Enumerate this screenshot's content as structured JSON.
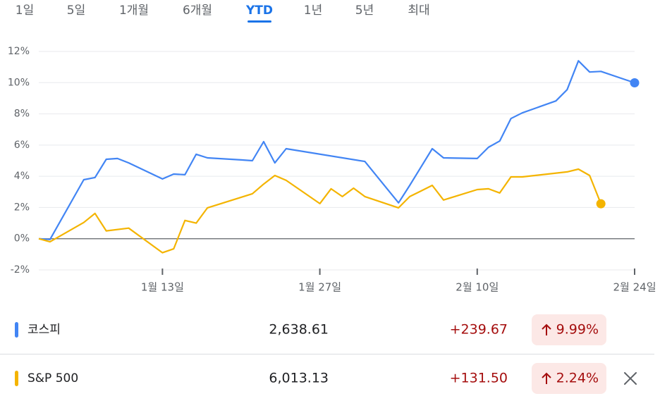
{
  "tabs": [
    "1일",
    "5일",
    "1개월",
    "6개월",
    "YTD",
    "1년",
    "5년",
    "최대"
  ],
  "active_tab": 4,
  "chart_data": {
    "type": "line",
    "grid": true,
    "ylim": [
      -2,
      12
    ],
    "yticks": [
      {
        "value": -2,
        "label": "-2%"
      },
      {
        "value": 0,
        "label": "0%"
      },
      {
        "value": 2,
        "label": "2%"
      },
      {
        "value": 4,
        "label": "4%"
      },
      {
        "value": 6,
        "label": "6%"
      },
      {
        "value": 8,
        "label": "8%"
      },
      {
        "value": 10,
        "label": "10%"
      },
      {
        "value": 12,
        "label": "12%"
      }
    ],
    "xlim": [
      "1월 2일",
      "2월 24일"
    ],
    "xticks": [
      "1월 13일",
      "1월 27일",
      "2월 10일",
      "2월 24일"
    ],
    "series": [
      {
        "name": "코스피",
        "color": "#4285f4",
        "x": [
          "1월 2일",
          "1월 3일",
          "1월 6일",
          "1월 7일",
          "1월 8일",
          "1월 9일",
          "1월 10일",
          "1월 13일",
          "1월 14일",
          "1월 15일",
          "1월 16일",
          "1월 17일",
          "1월 20일",
          "1월 21일",
          "1월 22일",
          "1월 23일",
          "1월 24일",
          "1월 31일",
          "2월 3일",
          "2월 4일",
          "2월 5일",
          "2월 6일",
          "2월 7일",
          "2월 10일",
          "2월 11일",
          "2월 12일",
          "2월 13일",
          "2월 14일",
          "2월 17일",
          "2월 18일",
          "2월 19일",
          "2월 20일",
          "2월 21일",
          "2월 24일"
        ],
        "values": [
          0,
          -0.05,
          3.78,
          3.92,
          5.09,
          5.14,
          4.86,
          3.83,
          4.14,
          4.1,
          5.41,
          5.18,
          5.05,
          5.0,
          6.22,
          4.86,
          5.77,
          4.95,
          2.3,
          3.42,
          4.6,
          5.77,
          5.18,
          5.14,
          5.86,
          6.26,
          7.7,
          8.06,
          8.83,
          9.55,
          11.4,
          10.68,
          10.72,
          9.99
        ]
      },
      {
        "name": "S&P 500",
        "color": "#f4b400",
        "x": [
          "1월 2일",
          "1월 3일",
          "1월 6일",
          "1월 7일",
          "1월 8일",
          "1월 10일",
          "1월 13일",
          "1월 14일",
          "1월 15일",
          "1월 16일",
          "1월 17일",
          "1월 21일",
          "1월 22일",
          "1월 23일",
          "1월 24일",
          "1월 27일",
          "1월 28일",
          "1월 29일",
          "1월 30일",
          "1월 31일",
          "2월 3일",
          "2월 4일",
          "2월 5일",
          "2월 6일",
          "2월 7일",
          "2월 10일",
          "2월 11일",
          "2월 12일",
          "2월 13일",
          "2월 14일",
          "2월 18일",
          "2월 19일",
          "2월 20일",
          "2월 21일"
        ],
        "values": [
          0,
          -0.2,
          1.04,
          1.62,
          0.5,
          0.68,
          -0.9,
          -0.65,
          1.17,
          1.0,
          1.98,
          2.88,
          3.5,
          4.05,
          3.74,
          2.25,
          3.2,
          2.7,
          3.24,
          2.7,
          1.98,
          2.7,
          3.06,
          3.42,
          2.48,
          3.15,
          3.2,
          2.93,
          3.96,
          3.96,
          4.28,
          4.46,
          4.05,
          2.24
        ]
      }
    ]
  },
  "rows": [
    {
      "price": "2,638.61",
      "change": "+239.67",
      "percent_change": "9.99%"
    },
    {
      "price": "6,013.13",
      "change": "+131.50",
      "percent_change": "2.24%"
    }
  ]
}
